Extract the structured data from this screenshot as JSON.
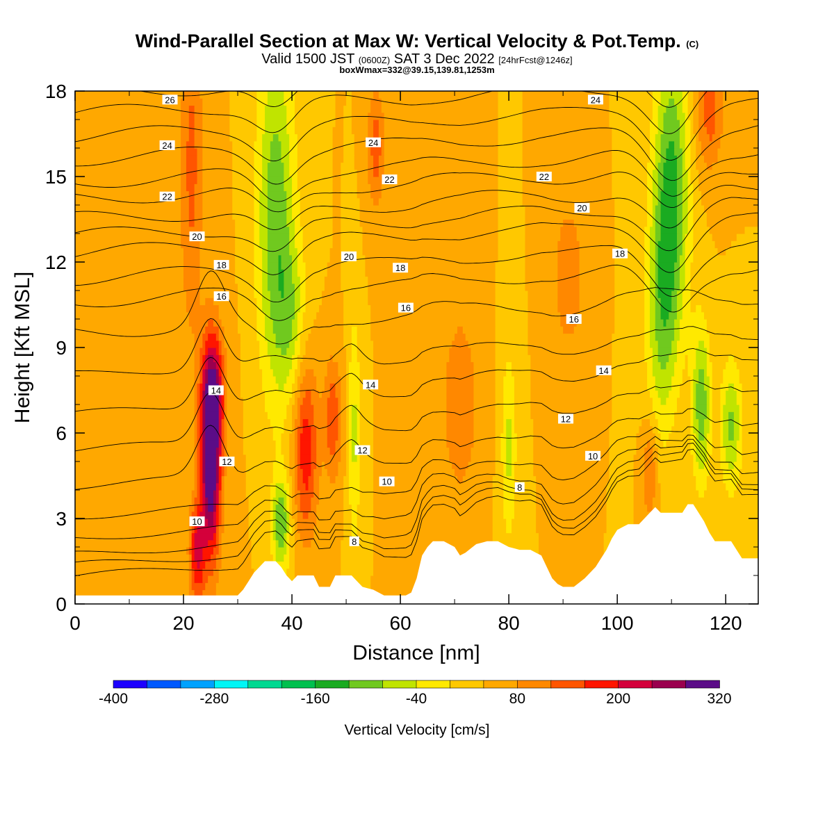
{
  "titles": {
    "main": "Wind-Parallel Section at Max W: Vertical Velocity & Pot.Temp.",
    "main_tag": "(C)",
    "valid_prefix": "Valid 1500 JST",
    "valid_utc": "(0600Z)",
    "valid_date": "SAT 3 Dec 2022",
    "valid_fcst": "[24hrFcst@1246z]",
    "boxinfo": "boxWmax=332@39.15,139.81,1253m"
  },
  "colors": {
    "terrain": "#ffffff",
    "contour": "#000000",
    "ramp": [
      "#1c00ff",
      "#0059ff",
      "#00a2ff",
      "#00f6f6",
      "#00d991",
      "#00c04e",
      "#1aab21",
      "#70c91f",
      "#c0e400",
      "#ffe900",
      "#ffc800",
      "#ffa800",
      "#ff8800",
      "#ff5500",
      "#ff1500",
      "#d4003b",
      "#9a004e",
      "#5b0c87"
    ]
  },
  "chart_data": {
    "type": "heatmap",
    "xlabel": "Distance [nm]",
    "ylabel": "Height [Kft MSL]",
    "xlim": [
      0,
      126
    ],
    "ylim": [
      0,
      18
    ],
    "xticks": [
      0,
      20,
      40,
      60,
      80,
      100,
      120
    ],
    "yticks": [
      0,
      3,
      6,
      9,
      12,
      15,
      18
    ],
    "colorbar": {
      "label": "Vertical Velocity [cm/s]",
      "levels": [
        -400,
        -360,
        -320,
        -280,
        -240,
        -200,
        -160,
        -120,
        -80,
        -40,
        0,
        40,
        80,
        120,
        160,
        200,
        240,
        280,
        320
      ],
      "tick_labels": [
        "-400",
        "-280",
        "-160",
        "-40",
        "80",
        "200",
        "320"
      ]
    },
    "background_w": 40,
    "w_features": [
      {
        "x": 25,
        "z": 5,
        "sx": 1.3,
        "sz": 2.4,
        "w": 300
      },
      {
        "x": 25.5,
        "z": 7.5,
        "sx": 1.5,
        "sz": 1.5,
        "w": 150
      },
      {
        "x": 22.5,
        "z": 1.8,
        "sx": 1.0,
        "sz": 1.2,
        "w": 160
      },
      {
        "x": 21.5,
        "z": 15.5,
        "sx": 1.5,
        "sz": 4,
        "w": 90
      },
      {
        "x": 37,
        "z": 13.5,
        "sx": 2.5,
        "sz": 4.5,
        "w": -150
      },
      {
        "x": 40,
        "z": 10,
        "sx": 2,
        "sz": 2,
        "w": -80
      },
      {
        "x": 38,
        "z": 2.8,
        "sx": 1.2,
        "sz": 1.2,
        "w": -150
      },
      {
        "x": 42.5,
        "z": 5.5,
        "sx": 1.6,
        "sz": 2.2,
        "w": 150
      },
      {
        "x": 47.5,
        "z": 6.5,
        "sx": 1.2,
        "sz": 1.5,
        "w": 110
      },
      {
        "x": 51.5,
        "z": 6,
        "sx": 0.8,
        "sz": 3,
        "w": -90
      },
      {
        "x": 55.5,
        "z": 16,
        "sx": 1.2,
        "sz": 1.5,
        "w": 100
      },
      {
        "x": 80,
        "z": 5.5,
        "sx": 1,
        "sz": 2.5,
        "w": -90
      },
      {
        "x": 71,
        "z": 7,
        "sx": 2.5,
        "sz": 2.5,
        "w": 70
      },
      {
        "x": 91,
        "z": 11.5,
        "sx": 2,
        "sz": 2,
        "w": 70
      },
      {
        "x": 110,
        "z": 14.5,
        "sx": 2.3,
        "sz": 3.8,
        "w": -170
      },
      {
        "x": 108,
        "z": 10,
        "sx": 2,
        "sz": 3,
        "w": -100
      },
      {
        "x": 115.5,
        "z": 7,
        "sx": 1.2,
        "sz": 2,
        "w": -150
      },
      {
        "x": 121,
        "z": 6.3,
        "sx": 1.4,
        "sz": 1.6,
        "w": -130
      },
      {
        "x": 106,
        "z": 4.7,
        "sx": 1,
        "sz": 1.2,
        "w": 90
      },
      {
        "x": 117,
        "z": 17.3,
        "sx": 1.8,
        "sz": 1.5,
        "w": 100
      },
      {
        "x": 0,
        "z": 7,
        "sx": 14,
        "sz": 5,
        "w": 25
      }
    ],
    "terrain_profile": [
      [
        0,
        0.3
      ],
      [
        30,
        0.3
      ],
      [
        31,
        0.5
      ],
      [
        32,
        0.8
      ],
      [
        33,
        1.1
      ],
      [
        34,
        1.3
      ],
      [
        35,
        1.5
      ],
      [
        37,
        1.5
      ],
      [
        38,
        1.3
      ],
      [
        39,
        1.0
      ],
      [
        40,
        0.8
      ],
      [
        41,
        1.0
      ],
      [
        44,
        1.0
      ],
      [
        45,
        0.6
      ],
      [
        47,
        0.6
      ],
      [
        48,
        1.0
      ],
      [
        51,
        1.0
      ],
      [
        52,
        0.8
      ],
      [
        53,
        0.6
      ],
      [
        55,
        0.5
      ],
      [
        57,
        0.3
      ],
      [
        61,
        0.3
      ],
      [
        62,
        0.4
      ],
      [
        63,
        0.9
      ],
      [
        64,
        1.7
      ],
      [
        65,
        2.0
      ],
      [
        66,
        2.2
      ],
      [
        68,
        2.2
      ],
      [
        70,
        2.0
      ],
      [
        71,
        1.7
      ],
      [
        72,
        1.8
      ],
      [
        74,
        2.1
      ],
      [
        76,
        2.2
      ],
      [
        78,
        2.2
      ],
      [
        80,
        2.0
      ],
      [
        82,
        1.9
      ],
      [
        84,
        1.9
      ],
      [
        86,
        1.7
      ],
      [
        87,
        1.3
      ],
      [
        88,
        0.9
      ],
      [
        89,
        0.7
      ],
      [
        90,
        0.6
      ],
      [
        92,
        0.6
      ],
      [
        94,
        0.9
      ],
      [
        96,
        1.3
      ],
      [
        97,
        1.6
      ],
      [
        98,
        1.9
      ],
      [
        99,
        2.3
      ],
      [
        100,
        2.6
      ],
      [
        102,
        2.8
      ],
      [
        104,
        2.8
      ],
      [
        105,
        3.0
      ],
      [
        106,
        3.2
      ],
      [
        107,
        3.4
      ],
      [
        108,
        3.2
      ],
      [
        112,
        3.2
      ],
      [
        113,
        3.5
      ],
      [
        114,
        3.5
      ],
      [
        115,
        3.2
      ],
      [
        116,
        2.9
      ],
      [
        117,
        2.5
      ],
      [
        118,
        2.2
      ],
      [
        121,
        2.2
      ],
      [
        122,
        1.9
      ],
      [
        123,
        1.6
      ],
      [
        126,
        1.6
      ]
    ],
    "theta_contours": {
      "levels": [
        6,
        7,
        8,
        9,
        10,
        11,
        12,
        13,
        14,
        15,
        16,
        17,
        18,
        19,
        20,
        21,
        22,
        23,
        24,
        25,
        26,
        27
      ],
      "z_at_x0": [
        0.7,
        1.1,
        1.5,
        2.1,
        2.9,
        4.0,
        5.3,
        6.6,
        8.0,
        9.5,
        10.6,
        11.4,
        12.3,
        12.9,
        13.5,
        14.2,
        14.8,
        15.6,
        16.4,
        17.2,
        17.9,
        18.6
      ],
      "labels": [
        {
          "x": 17.5,
          "z": 17.7,
          "text": "26"
        },
        {
          "x": 17.0,
          "z": 16.1,
          "text": "24"
        },
        {
          "x": 17.0,
          "z": 14.3,
          "text": "22"
        },
        {
          "x": 22.5,
          "z": 12.9,
          "text": "20"
        },
        {
          "x": 27.0,
          "z": 11.9,
          "text": "18"
        },
        {
          "x": 27.0,
          "z": 10.8,
          "text": "16"
        },
        {
          "x": 26.0,
          "z": 7.5,
          "text": "14"
        },
        {
          "x": 28.0,
          "z": 5.0,
          "text": "12"
        },
        {
          "x": 22.5,
          "z": 2.9,
          "text": "10"
        },
        {
          "x": 55.0,
          "z": 16.2,
          "text": "24"
        },
        {
          "x": 58.0,
          "z": 14.9,
          "text": "22"
        },
        {
          "x": 50.5,
          "z": 12.2,
          "text": "20"
        },
        {
          "x": 60.0,
          "z": 11.8,
          "text": "18"
        },
        {
          "x": 61.0,
          "z": 10.4,
          "text": "16"
        },
        {
          "x": 54.5,
          "z": 7.7,
          "text": "14"
        },
        {
          "x": 53.0,
          "z": 5.4,
          "text": "12"
        },
        {
          "x": 57.5,
          "z": 4.3,
          "text": "10"
        },
        {
          "x": 51.5,
          "z": 2.2,
          "text": "8"
        },
        {
          "x": 96.0,
          "z": 17.7,
          "text": "24"
        },
        {
          "x": 86.5,
          "z": 15.0,
          "text": "22"
        },
        {
          "x": 93.5,
          "z": 13.9,
          "text": "20"
        },
        {
          "x": 100.5,
          "z": 12.3,
          "text": "18"
        },
        {
          "x": 92.0,
          "z": 10.0,
          "text": "16"
        },
        {
          "x": 97.5,
          "z": 8.2,
          "text": "14"
        },
        {
          "x": 90.5,
          "z": 6.5,
          "text": "12"
        },
        {
          "x": 95.5,
          "z": 5.2,
          "text": "10"
        },
        {
          "x": 82.0,
          "z": 4.1,
          "text": "8"
        }
      ]
    }
  }
}
